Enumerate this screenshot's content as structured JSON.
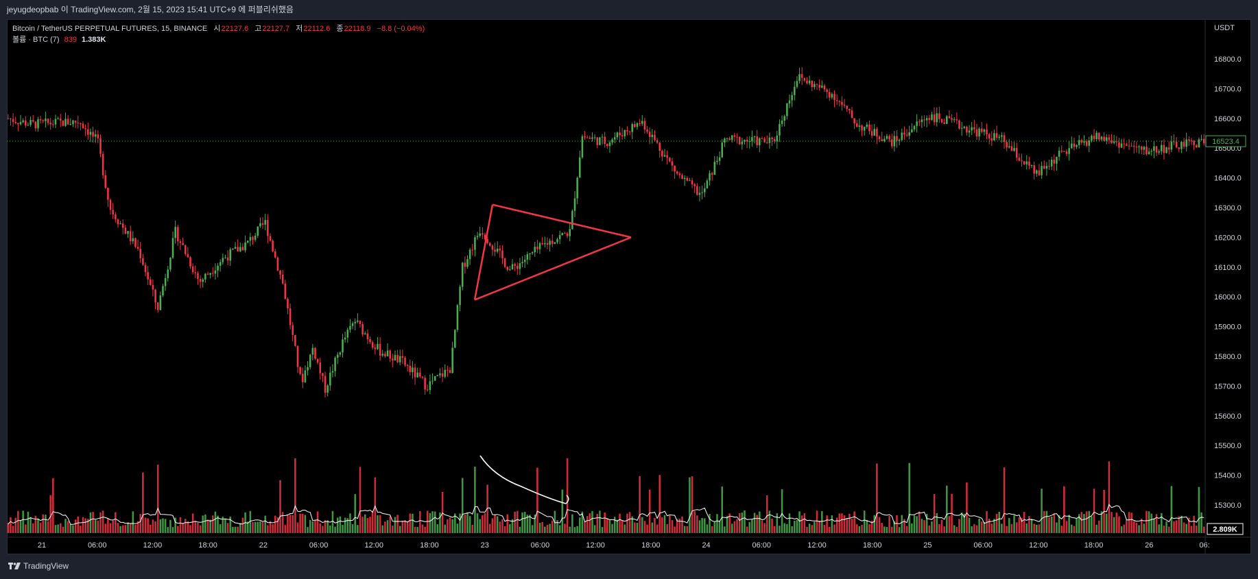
{
  "header": {
    "publish_line": "jeyugdeopbab 이 TradingView.com, 2월 15, 2023 15:41 UTC+9 에 퍼블리쉬했음"
  },
  "legend": {
    "symbol": "Bitcoin / TetherUS PERPETUAL FUTURES, 15, BINANCE",
    "open_label": "시",
    "open_value": "22127.6",
    "high_label": "고",
    "high_value": "22127.7",
    "low_label": "저",
    "low_value": "22112.6",
    "close_label": "종",
    "close_value": "22118.9",
    "change": "−8.8 (−0.04%)",
    "volume_label": "볼륨 · BTC (7)",
    "volume_value": "839",
    "volume_ma": "1.383K"
  },
  "price_axis": {
    "currency": "USDT",
    "ticks": [
      "16800.0",
      "16700.0",
      "16600.0",
      "16500.0",
      "16400.0",
      "16300.0",
      "16200.0",
      "16100.0",
      "16000.0",
      "15900.0",
      "15800.0",
      "15700.0",
      "15600.0",
      "15500.0",
      "15400.0",
      "15300.0"
    ],
    "current_price": "16523.4",
    "volume_badge": "2.809K"
  },
  "time_axis": {
    "ticks": [
      "21",
      "06:00",
      "12:00",
      "18:00",
      "22",
      "06:00",
      "12:00",
      "18:00",
      "23",
      "06:00",
      "12:00",
      "18:00",
      "24",
      "06:00",
      "12:00",
      "18:00",
      "25",
      "06:00",
      "12:00",
      "18:00",
      "26",
      "06:"
    ]
  },
  "footer": {
    "brand": "TradingView"
  },
  "colors": {
    "up": "#22ab94",
    "up_bright": "#4caf50",
    "down": "#f23645",
    "triangle": "#f23645",
    "background": "#000000",
    "axis_text": "#d1d4dc",
    "ma_line": "#ffffff"
  },
  "chart_data": {
    "type": "candlestick",
    "title": "Bitcoin / TetherUS PERPETUAL FUTURES, 15, BINANCE",
    "y_unit": "USDT",
    "ylim": [
      15200,
      16850
    ],
    "x_labels": [
      "21",
      "06:00",
      "12:00",
      "18:00",
      "22",
      "06:00",
      "12:00",
      "18:00",
      "23",
      "06:00",
      "12:00",
      "18:00",
      "24",
      "06:00",
      "12:00",
      "18:00",
      "25",
      "06:00",
      "12:00",
      "18:00",
      "26",
      "06:"
    ],
    "price_path": [
      {
        "t": 0,
        "p": 16600
      },
      {
        "t": 0.02,
        "p": 16580
      },
      {
        "t": 0.06,
        "p": 16590
      },
      {
        "t": 0.075,
        "p": 16520
      },
      {
        "t": 0.085,
        "p": 16300
      },
      {
        "t": 0.11,
        "p": 16150
      },
      {
        "t": 0.125,
        "p": 15960
      },
      {
        "t": 0.14,
        "p": 16220
      },
      {
        "t": 0.16,
        "p": 16050
      },
      {
        "t": 0.18,
        "p": 16130
      },
      {
        "t": 0.2,
        "p": 16180
      },
      {
        "t": 0.215,
        "p": 16250
      },
      {
        "t": 0.23,
        "p": 16040
      },
      {
        "t": 0.245,
        "p": 15710
      },
      {
        "t": 0.255,
        "p": 15830
      },
      {
        "t": 0.265,
        "p": 15690
      },
      {
        "t": 0.28,
        "p": 15850
      },
      {
        "t": 0.29,
        "p": 15920
      },
      {
        "t": 0.31,
        "p": 15820
      },
      {
        "t": 0.33,
        "p": 15780
      },
      {
        "t": 0.35,
        "p": 15700
      },
      {
        "t": 0.37,
        "p": 15760
      },
      {
        "t": 0.38,
        "p": 16100
      },
      {
        "t": 0.395,
        "p": 16230
      },
      {
        "t": 0.42,
        "p": 16090
      },
      {
        "t": 0.45,
        "p": 16180
      },
      {
        "t": 0.47,
        "p": 16220
      },
      {
        "t": 0.48,
        "p": 16540
      },
      {
        "t": 0.5,
        "p": 16520
      },
      {
        "t": 0.53,
        "p": 16590
      },
      {
        "t": 0.56,
        "p": 16410
      },
      {
        "t": 0.58,
        "p": 16340
      },
      {
        "t": 0.6,
        "p": 16530
      },
      {
        "t": 0.64,
        "p": 16520
      },
      {
        "t": 0.66,
        "p": 16740
      },
      {
        "t": 0.69,
        "p": 16680
      },
      {
        "t": 0.71,
        "p": 16580
      },
      {
        "t": 0.74,
        "p": 16520
      },
      {
        "t": 0.77,
        "p": 16610
      },
      {
        "t": 0.8,
        "p": 16570
      },
      {
        "t": 0.83,
        "p": 16530
      },
      {
        "t": 0.86,
        "p": 16410
      },
      {
        "t": 0.88,
        "p": 16480
      },
      {
        "t": 0.91,
        "p": 16540
      },
      {
        "t": 0.95,
        "p": 16490
      },
      {
        "t": 1.0,
        "p": 16523
      }
    ],
    "annotations": [
      {
        "type": "triangle",
        "shape": "symmetrical triangle drawn in red",
        "apex_price": 16200,
        "upper_start_price": 16310,
        "lower_start_price": 15990
      },
      {
        "type": "curved-arrow",
        "color": "white",
        "position": "volume pane"
      }
    ],
    "volume_series": {
      "name": "볼륨 · BTC (7)",
      "latest": "2.809K"
    }
  }
}
